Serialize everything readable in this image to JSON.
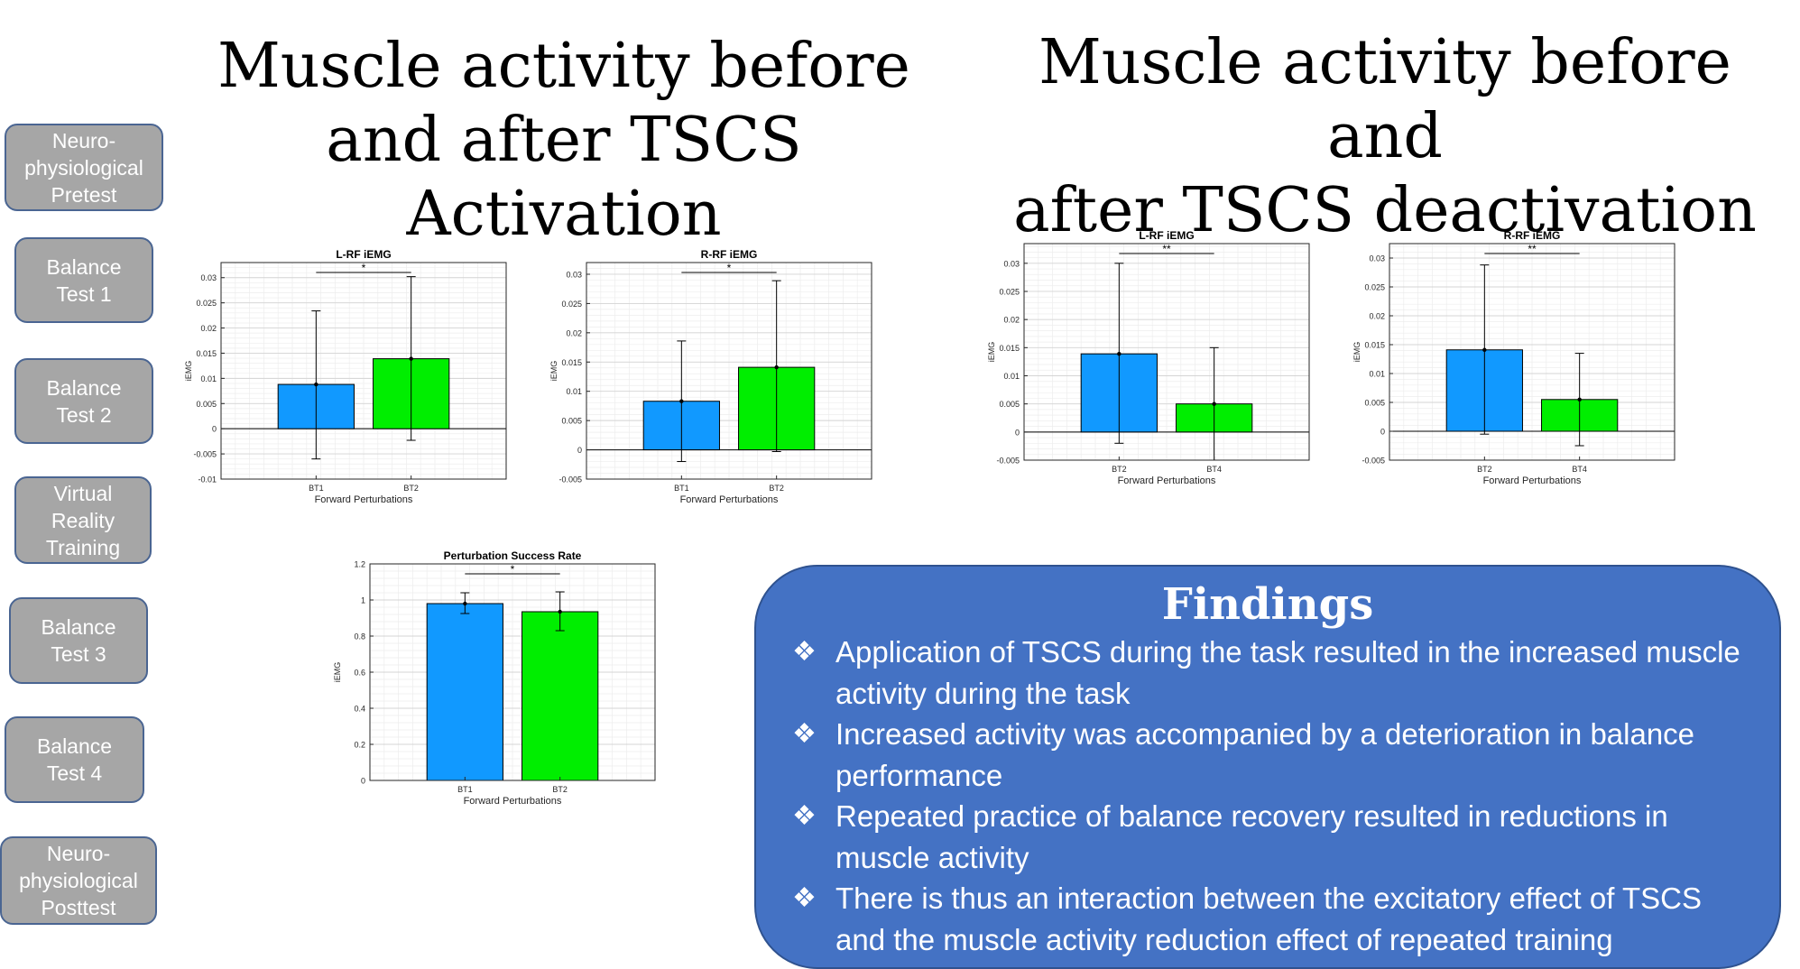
{
  "steps": [
    {
      "label": "Neuro-\nphysiological\nPretest"
    },
    {
      "label": "Balance\nTest 1"
    },
    {
      "label": "Balance\nTest 2"
    },
    {
      "label": "Virtual\nReality\nTraining"
    },
    {
      "label": "Balance\nTest 3"
    },
    {
      "label": "Balance\nTest 4"
    },
    {
      "label": "Neuro-\nphysiological\nPosttest"
    }
  ],
  "titles": {
    "activation": "Muscle activity before\nand after TSCS Activation",
    "deactivation": "Muscle activity before and\nafter TSCS deactivation"
  },
  "colors": {
    "series1": "#1199ff",
    "series2": "#00ee00",
    "findings_bg": "#4472c4",
    "step_bg": "#a6a6a6"
  },
  "chart_data": [
    {
      "type": "bar",
      "title": "L-RF iEMG",
      "xlabel": "Forward Perturbations",
      "ylabel": "iEMG",
      "categories": [
        "BT1",
        "BT2"
      ],
      "values": [
        0.0088,
        0.0139
      ],
      "errors": [
        [
          -0.006,
          0.0234
        ],
        [
          -0.0023,
          0.0302
        ]
      ],
      "ylim": [
        -0.01,
        0.033
      ],
      "yticks": [
        -0.01,
        -0.005,
        0,
        0.005,
        0.01,
        0.015,
        0.02,
        0.025,
        0.03
      ],
      "yticklabels": [
        "-0.01",
        "-0.005",
        "0",
        "0.005",
        "0.01",
        "0.015",
        "0.02",
        "0.025",
        "0.03"
      ],
      "significance": "*",
      "grid": true
    },
    {
      "type": "bar",
      "title": "R-RF iEMG",
      "xlabel": "Forward Perturbations",
      "ylabel": "iEMG",
      "categories": [
        "BT1",
        "BT2"
      ],
      "values": [
        0.0083,
        0.0141
      ],
      "errors": [
        [
          -0.002,
          0.0186
        ],
        [
          -0.0003,
          0.0289
        ]
      ],
      "ylim": [
        -0.005,
        0.032
      ],
      "yticks": [
        -0.005,
        0,
        0.005,
        0.01,
        0.015,
        0.02,
        0.025,
        0.03
      ],
      "yticklabels": [
        "-0.005",
        "0",
        "0.005",
        "0.01",
        "0.015",
        "0.02",
        "0.025",
        "0.03"
      ],
      "significance": "*",
      "grid": true
    },
    {
      "type": "bar",
      "title": "L-RF iEMG",
      "xlabel": "Forward Perturbations",
      "ylabel": "iEMG",
      "categories": [
        "BT2",
        "BT4"
      ],
      "values": [
        0.0139,
        0.005
      ],
      "errors": [
        [
          -0.002,
          0.03
        ],
        [
          -0.005,
          0.015
        ]
      ],
      "ylim": [
        -0.005,
        0.0335
      ],
      "yticks": [
        -0.005,
        0,
        0.005,
        0.01,
        0.015,
        0.02,
        0.025,
        0.03
      ],
      "yticklabels": [
        "-0.005",
        "0",
        "0.005",
        "0.01",
        "0.015",
        "0.02",
        "0.025",
        "0.03"
      ],
      "significance": "**",
      "grid": true
    },
    {
      "type": "bar",
      "title": "R-RF iEMG",
      "xlabel": "Forward Perturbations",
      "ylabel": "iEMG",
      "categories": [
        "BT2",
        "BT4"
      ],
      "values": [
        0.0141,
        0.0055
      ],
      "errors": [
        [
          -0.0005,
          0.0288
        ],
        [
          -0.0025,
          0.0135
        ]
      ],
      "ylim": [
        -0.005,
        0.0325
      ],
      "yticks": [
        -0.005,
        0,
        0.005,
        0.01,
        0.015,
        0.02,
        0.025,
        0.03
      ],
      "yticklabels": [
        "-0.005",
        "0",
        "0.005",
        "0.01",
        "0.015",
        "0.02",
        "0.025",
        "0.03"
      ],
      "significance": "**",
      "grid": true
    },
    {
      "type": "bar",
      "title": "Perturbation Success Rate",
      "xlabel": "Forward Perturbations",
      "ylabel": "iEMG",
      "categories": [
        "BT1",
        "BT2"
      ],
      "values": [
        0.98,
        0.935
      ],
      "errors": [
        [
          0.925,
          1.04
        ],
        [
          0.83,
          1.045
        ]
      ],
      "ylim": [
        0,
        1.2
      ],
      "yticks": [
        0,
        0.2,
        0.4,
        0.6,
        0.8,
        1,
        1.2
      ],
      "yticklabels": [
        "0",
        "0.2",
        "0.4",
        "0.6",
        "0.8",
        "1",
        "1.2"
      ],
      "significance": "*",
      "grid": true
    }
  ],
  "findings": {
    "title": "Findings",
    "bullet": "❖",
    "items": [
      "Application of TSCS during the task resulted in the increased muscle activity during the task",
      "Increased activity was accompanied by a deterioration in balance performance",
      "Repeated practice of balance recovery resulted in reductions in muscle activity",
      "There is thus an interaction between the excitatory effect of TSCS and the muscle activity reduction effect of repeated training"
    ]
  }
}
